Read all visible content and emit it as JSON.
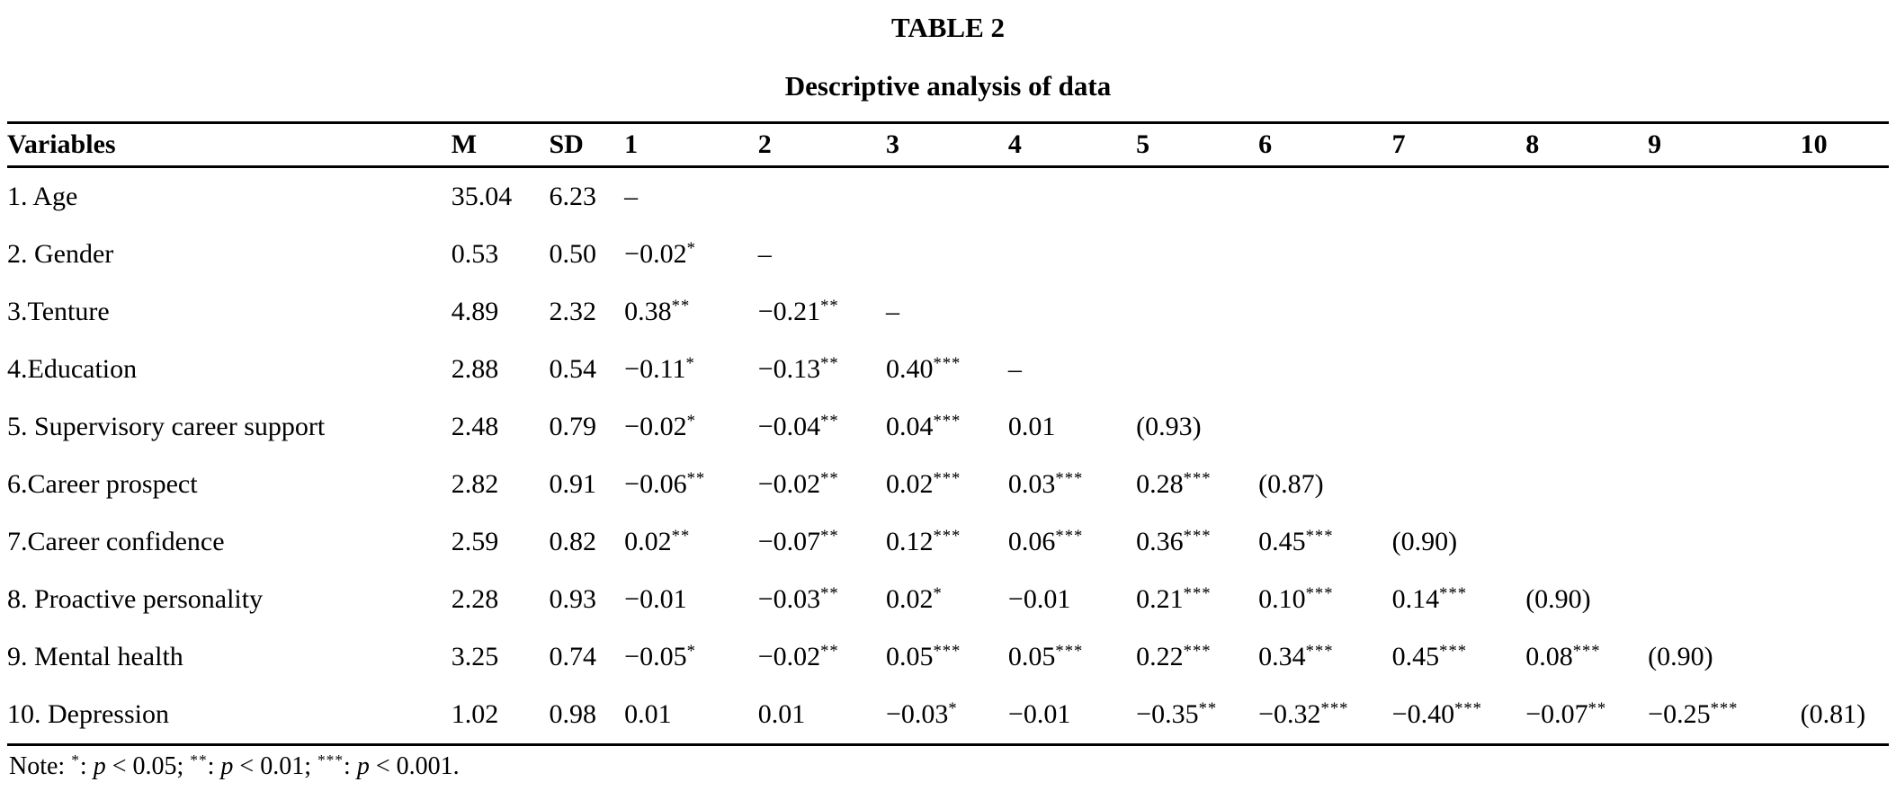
{
  "page": {
    "title": "TABLE 2",
    "subtitle": "Descriptive analysis of data"
  },
  "table": {
    "columns": [
      "Variables",
      "M",
      "SD",
      "1",
      "2",
      "3",
      "4",
      "5",
      "6",
      "7",
      "8",
      "9",
      "10"
    ],
    "rows": [
      {
        "variable": "1. Age",
        "m": "35.04",
        "sd": "6.23",
        "correlations": [
          "–",
          "",
          "",
          "",
          "",
          "",
          "",
          "",
          "",
          ""
        ]
      },
      {
        "variable": "2. Gender",
        "m": "0.53",
        "sd": "0.50",
        "correlations": [
          "−0.02*",
          "–",
          "",
          "",
          "",
          "",
          "",
          "",
          "",
          ""
        ]
      },
      {
        "variable": "3.Tenture",
        "m": "4.89",
        "sd": "2.32",
        "correlations": [
          "0.38**",
          "−0.21**",
          "–",
          "",
          "",
          "",
          "",
          "",
          "",
          ""
        ]
      },
      {
        "variable": "4.Education",
        "m": "2.88",
        "sd": "0.54",
        "correlations": [
          "−0.11*",
          "−0.13**",
          "0.40***",
          "–",
          "",
          "",
          "",
          "",
          "",
          ""
        ]
      },
      {
        "variable": "5. Supervisory career support",
        "m": "2.48",
        "sd": "0.79",
        "correlations": [
          "−0.02*",
          "−0.04**",
          "0.04***",
          "0.01",
          "(0.93)",
          "",
          "",
          "",
          "",
          ""
        ]
      },
      {
        "variable": "6.Career prospect",
        "m": "2.82",
        "sd": "0.91",
        "correlations": [
          "−0.06**",
          "−0.02**",
          "0.02***",
          "0.03***",
          "0.28***",
          "(0.87)",
          "",
          "",
          "",
          ""
        ]
      },
      {
        "variable": "7.Career confidence",
        "m": "2.59",
        "sd": "0.82",
        "correlations": [
          "0.02**",
          "−0.07**",
          "0.12***",
          "0.06***",
          "0.36***",
          "0.45***",
          "(0.90)",
          "",
          "",
          ""
        ]
      },
      {
        "variable": "8. Proactive personality",
        "m": "2.28",
        "sd": "0.93",
        "correlations": [
          "−0.01",
          "−0.03**",
          "0.02*",
          "−0.01",
          "0.21***",
          "0.10***",
          "0.14***",
          "(0.90)",
          "",
          ""
        ]
      },
      {
        "variable": "9. Mental health",
        "m": "3.25",
        "sd": "0.74",
        "correlations": [
          "−0.05*",
          "−0.02**",
          "0.05***",
          "0.05***",
          "0.22***",
          "0.34***",
          "0.45***",
          "0.08***",
          "(0.90)",
          ""
        ]
      },
      {
        "variable": "10. Depression",
        "m": "1.02",
        "sd": "0.98",
        "correlations": [
          "0.01",
          "0.01",
          "−0.03*",
          "−0.01",
          "−0.35**",
          "−0.32***",
          "−0.40***",
          "−0.07**",
          "−0.25***",
          "(0.81)"
        ]
      }
    ],
    "note_segments": [
      {
        "text": "Note: ",
        "style": "normal"
      },
      {
        "text": "*",
        "style": "sup"
      },
      {
        "text": ": ",
        "style": "normal"
      },
      {
        "text": "p",
        "style": "italic"
      },
      {
        "text": " < 0.05; ",
        "style": "normal"
      },
      {
        "text": "**",
        "style": "sup"
      },
      {
        "text": ": ",
        "style": "normal"
      },
      {
        "text": "p",
        "style": "italic"
      },
      {
        "text": " < 0.01; ",
        "style": "normal"
      },
      {
        "text": "***",
        "style": "sup"
      },
      {
        "text": ": ",
        "style": "normal"
      },
      {
        "text": "p",
        "style": "italic"
      },
      {
        "text": " < 0.001.",
        "style": "normal"
      }
    ]
  }
}
